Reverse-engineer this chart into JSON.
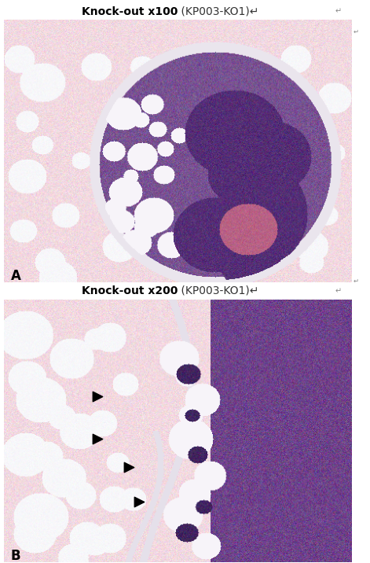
{
  "title_top_bold": "Knock-out x100",
  "title_top_normal": " (KP003-KO1)",
  "title_bottom_bold": "Knock-out x200",
  "title_bottom_normal": " (KP003-KO1)",
  "label_A": "A",
  "label_B": "B",
  "header_bg": "#dce6f1",
  "header_fontsize": 10,
  "label_fontsize": 12,
  "fig_bg": "#ffffff",
  "border_color": "#888888"
}
